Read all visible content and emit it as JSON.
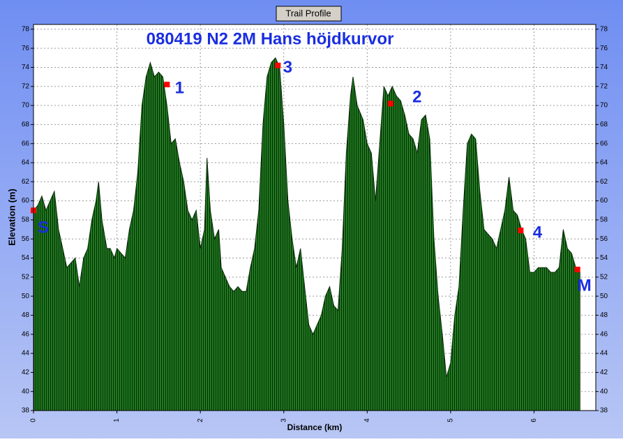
{
  "chart_data": {
    "type": "area",
    "title": "Trail Profile",
    "annotation_title": "080419  N2  2M  Hans höjdkurvor",
    "x_label": "Distance (km)",
    "y_label": "Elevation (m)",
    "color": "#1e7a1e",
    "grid": true,
    "xlim": [
      0,
      6.74
    ],
    "ylim": [
      38,
      78.5
    ],
    "xticks": [
      0,
      1,
      2,
      3,
      4,
      5,
      6
    ],
    "yticks": [
      38,
      40,
      42,
      44,
      46,
      48,
      50,
      52,
      54,
      56,
      58,
      60,
      62,
      64,
      66,
      68,
      70,
      72,
      74,
      76,
      78
    ],
    "x": [
      0,
      0.05,
      0.1,
      0.15,
      0.2,
      0.25,
      0.3,
      0.35,
      0.4,
      0.45,
      0.5,
      0.55,
      0.6,
      0.65,
      0.7,
      0.75,
      0.78,
      0.82,
      0.88,
      0.92,
      0.97,
      1.0,
      1.05,
      1.1,
      1.15,
      1.2,
      1.25,
      1.3,
      1.35,
      1.4,
      1.45,
      1.5,
      1.55,
      1.6,
      1.65,
      1.7,
      1.75,
      1.8,
      1.85,
      1.9,
      1.95,
      2.0,
      2.05,
      2.08,
      2.12,
      2.17,
      2.22,
      2.25,
      2.3,
      2.35,
      2.4,
      2.45,
      2.5,
      2.55,
      2.6,
      2.65,
      2.7,
      2.75,
      2.8,
      2.85,
      2.9,
      2.95,
      3.0,
      3.05,
      3.1,
      3.15,
      3.2,
      3.25,
      3.3,
      3.35,
      3.4,
      3.45,
      3.5,
      3.55,
      3.6,
      3.65,
      3.7,
      3.75,
      3.8,
      3.83,
      3.88,
      3.95,
      4.0,
      4.05,
      4.1,
      4.15,
      4.2,
      4.25,
      4.3,
      4.35,
      4.4,
      4.45,
      4.5,
      4.55,
      4.6,
      4.65,
      4.7,
      4.75,
      4.8,
      4.85,
      4.9,
      4.95,
      5.0,
      5.05,
      5.1,
      5.15,
      5.2,
      5.25,
      5.3,
      5.35,
      5.4,
      5.45,
      5.5,
      5.55,
      5.6,
      5.65,
      5.7,
      5.75,
      5.8,
      5.85,
      5.9,
      5.95,
      6.0,
      6.05,
      6.1,
      6.15,
      6.2,
      6.25,
      6.3,
      6.35,
      6.4,
      6.45,
      6.5,
      6.55
    ],
    "values": [
      59,
      59.5,
      60.5,
      59,
      60,
      61,
      57,
      55,
      53,
      53.5,
      54,
      51,
      54,
      55,
      58,
      60,
      62,
      58,
      55,
      55,
      54,
      55,
      54.5,
      54,
      57,
      59,
      63,
      70,
      73,
      74.5,
      73,
      73.5,
      73,
      70,
      66,
      66.5,
      64,
      62,
      59,
      58,
      59,
      55,
      57,
      64.5,
      59,
      56,
      57,
      53,
      52,
      51,
      50.5,
      51,
      50.5,
      50.5,
      53,
      55,
      59,
      68,
      73,
      74.5,
      75,
      74,
      68,
      60,
      56,
      53,
      55,
      51,
      47,
      46,
      47,
      48,
      50,
      51,
      49,
      48.5,
      55,
      65,
      71,
      73,
      70,
      68.5,
      66,
      65,
      60,
      66,
      72,
      71,
      72,
      71,
      70.5,
      69,
      67,
      66.5,
      65,
      68.5,
      69,
      66.5,
      56,
      50,
      46,
      41.5,
      43,
      48,
      51,
      59,
      66,
      67,
      66.5,
      61,
      57,
      56.5,
      56,
      55,
      57,
      59,
      62.5,
      59,
      58.5,
      57,
      56,
      52.5,
      52.5,
      53,
      53,
      53,
      52.5,
      52.5,
      53,
      57,
      55,
      54.5,
      53,
      52.5
    ],
    "markers": [
      {
        "text": "S",
        "x": 0,
        "y": 59
      },
      {
        "text": "1",
        "x": 1.6,
        "y": 72.2
      },
      {
        "text": "3",
        "x": 2.93,
        "y": 74.2
      },
      {
        "text": "2",
        "x": 4.28,
        "y": 70.2
      },
      {
        "text": "4",
        "x": 5.84,
        "y": 56.9
      },
      {
        "text": "M",
        "x": 6.52,
        "y": 52.8
      }
    ]
  }
}
